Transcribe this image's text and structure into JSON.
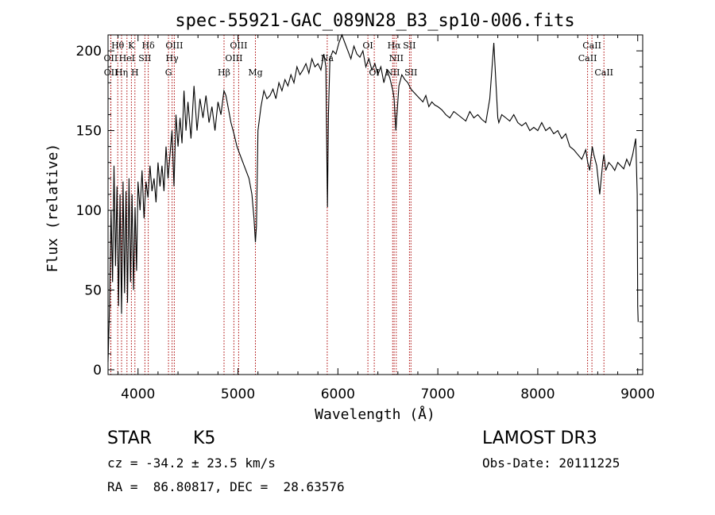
{
  "chart_data": {
    "type": "line",
    "title": "spec-55921-GAC_089N28_B3_sp10-006.fits",
    "xlabel": "Wavelength (Å)",
    "ylabel": "Flux (relative)",
    "xlim": [
      3700,
      9050
    ],
    "ylim": [
      -3,
      210
    ],
    "xticks": [
      4000,
      5000,
      6000,
      7000,
      8000,
      9000
    ],
    "xtick_labels": [
      "4000",
      "5000",
      "6000",
      "7000",
      "8000",
      "9000"
    ],
    "yticks": [
      0,
      50,
      100,
      150,
      200
    ],
    "ytick_labels": [
      "0",
      "50",
      "100",
      "150",
      "200"
    ],
    "grid": false,
    "series": [
      {
        "x": [
          3700,
          3715,
          3730,
          3745,
          3760,
          3775,
          3790,
          3805,
          3820,
          3835,
          3850,
          3865,
          3880,
          3895,
          3910,
          3925,
          3940,
          3955,
          3970,
          3985,
          4000,
          4020,
          4040,
          4060,
          4080,
          4100,
          4120,
          4140,
          4160,
          4180,
          4200,
          4220,
          4240,
          4260,
          4280,
          4300,
          4320,
          4340,
          4360,
          4380,
          4400,
          4420,
          4440,
          4460,
          4480,
          4500,
          4530,
          4560,
          4590,
          4620,
          4650,
          4680,
          4710,
          4740,
          4770,
          4800,
          4830,
          4860,
          4880,
          4900,
          4930,
          4960,
          4990,
          5020,
          5050,
          5080,
          5110,
          5140,
          5160,
          5175,
          5185,
          5200,
          5230,
          5260,
          5290,
          5320,
          5350,
          5380,
          5410,
          5440,
          5470,
          5500,
          5530,
          5560,
          5590,
          5620,
          5650,
          5680,
          5710,
          5740,
          5770,
          5800,
          5830,
          5860,
          5880,
          5890,
          5896,
          5905,
          5920,
          5950,
          5980,
          6010,
          6040,
          6070,
          6100,
          6130,
          6160,
          6190,
          6220,
          6250,
          6280,
          6310,
          6340,
          6370,
          6400,
          6430,
          6460,
          6490,
          6520,
          6550,
          6563,
          6580,
          6610,
          6640,
          6670,
          6700,
          6730,
          6760,
          6790,
          6820,
          6850,
          6880,
          6910,
          6940,
          6970,
          7000,
          7040,
          7080,
          7120,
          7160,
          7200,
          7240,
          7280,
          7320,
          7360,
          7400,
          7440,
          7480,
          7520,
          7560,
          7590,
          7600,
          7610,
          7640,
          7680,
          7720,
          7760,
          7800,
          7840,
          7880,
          7920,
          7960,
          8000,
          8040,
          8080,
          8120,
          8160,
          8200,
          8240,
          8280,
          8320,
          8360,
          8400,
          8440,
          8480,
          8500,
          8520,
          8545,
          8560,
          8590,
          8620,
          8650,
          8662,
          8680,
          8710,
          8740,
          8770,
          8800,
          8830,
          8860,
          8890,
          8920,
          8950,
          8980,
          8995,
          9000,
          9005
        ],
        "y": [
          5,
          40,
          100,
          55,
          128,
          65,
          115,
          40,
          110,
          35,
          118,
          48,
          112,
          42,
          120,
          55,
          110,
          50,
          102,
          62,
          118,
          100,
          125,
          95,
          118,
          108,
          128,
          112,
          120,
          105,
          130,
          115,
          128,
          112,
          140,
          120,
          135,
          150,
          115,
          160,
          140,
          158,
          142,
          175,
          150,
          168,
          145,
          178,
          150,
          170,
          158,
          172,
          155,
          165,
          150,
          168,
          160,
          175,
          172,
          165,
          155,
          148,
          140,
          135,
          130,
          125,
          120,
          110,
          95,
          80,
          90,
          150,
          165,
          175,
          170,
          172,
          176,
          170,
          180,
          175,
          182,
          178,
          185,
          180,
          190,
          185,
          188,
          192,
          186,
          195,
          190,
          192,
          188,
          198,
          190,
          130,
          102,
          160,
          195,
          200,
          198,
          205,
          210,
          205,
          200,
          195,
          203,
          198,
          196,
          200,
          190,
          195,
          188,
          192,
          185,
          190,
          180,
          188,
          183,
          175,
          170,
          150,
          178,
          185,
          182,
          180,
          176,
          174,
          172,
          170,
          168,
          172,
          165,
          168,
          166,
          165,
          163,
          160,
          158,
          162,
          160,
          158,
          156,
          162,
          158,
          160,
          157,
          155,
          170,
          205,
          170,
          158,
          155,
          160,
          158,
          156,
          160,
          155,
          153,
          155,
          150,
          152,
          150,
          155,
          150,
          152,
          148,
          150,
          145,
          148,
          140,
          138,
          135,
          132,
          138,
          130,
          125,
          140,
          135,
          128,
          110,
          130,
          135,
          125,
          130,
          128,
          125,
          130,
          128,
          126,
          132,
          128,
          135,
          145,
          110,
          40,
          30
        ]
      }
    ],
    "spectral_lines": [
      {
        "label": "Hθ",
        "wave": 3797,
        "row": 1
      },
      {
        "label": "OII",
        "wave": 3727,
        "row": 2
      },
      {
        "label": "OII",
        "wave": 3729,
        "row": 3
      },
      {
        "label": "K",
        "wave": 3934,
        "row": 1
      },
      {
        "label": "HeI",
        "wave": 3889,
        "row": 2
      },
      {
        "label": "Hη",
        "wave": 3835,
        "row": 3
      },
      {
        "label": "Hδ",
        "wave": 4102,
        "row": 1
      },
      {
        "label": "SII",
        "wave": 4069,
        "row": 2
      },
      {
        "label": "H",
        "wave": 3969,
        "row": 3
      },
      {
        "label": "OIII",
        "wave": 4363,
        "row": 1
      },
      {
        "label": "Hγ",
        "wave": 4341,
        "row": 2
      },
      {
        "label": "G",
        "wave": 4305,
        "row": 3
      },
      {
        "label": "OIII",
        "wave": 5007,
        "row": 1
      },
      {
        "label": "OIII",
        "wave": 4959,
        "row": 2
      },
      {
        "label": "Hβ",
        "wave": 4861,
        "row": 3
      },
      {
        "label": "Mg",
        "wave": 5175,
        "row": 3
      },
      {
        "label": "Na",
        "wave": 5893,
        "row": 2
      },
      {
        "label": "OI",
        "wave": 6300,
        "row": 1
      },
      {
        "label": "OI",
        "wave": 6364,
        "row": 3
      },
      {
        "label": "Hα",
        "wave": 6563,
        "row": 1
      },
      {
        "label": "NII",
        "wave": 6548,
        "row": 3
      },
      {
        "label": "NII",
        "wave": 6584,
        "row": 2
      },
      {
        "label": "SII",
        "wave": 6716,
        "row": 1
      },
      {
        "label": "SII",
        "wave": 6731,
        "row": 3
      },
      {
        "label": "CaII",
        "wave": 8498,
        "row": 2
      },
      {
        "label": "CaII",
        "wave": 8542,
        "row": 1
      },
      {
        "label": "CaII",
        "wave": 8662,
        "row": 3
      }
    ]
  },
  "info": {
    "object_class": "STAR",
    "subclass": "K5",
    "survey": "LAMOST DR3",
    "redshift_line": "cz = -34.2 ± 23.5 km/s",
    "obs_date_line": "Obs-Date: 20111225",
    "coords_line": "RA =  86.80817, DEC =  28.63576"
  },
  "colors": {
    "line": "#000000",
    "marker": "#aa0000",
    "background": "#ffffff"
  }
}
